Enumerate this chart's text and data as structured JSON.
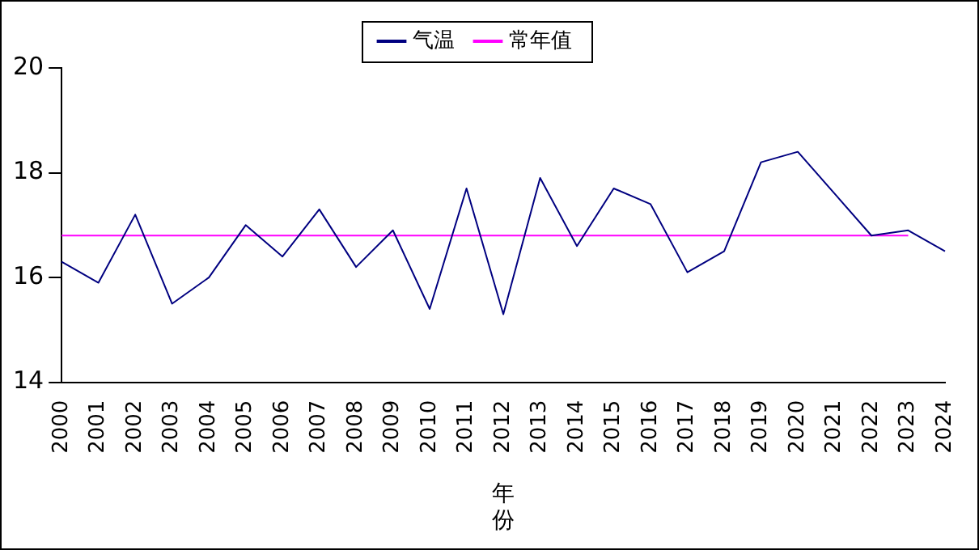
{
  "chart_data": {
    "type": "line",
    "xlabel": "年份",
    "categories": [
      "2000",
      "2001",
      "2002",
      "2003",
      "2004",
      "2005",
      "2006",
      "2007",
      "2008",
      "2009",
      "2010",
      "2011",
      "2012",
      "2013",
      "2014",
      "2015",
      "2016",
      "2017",
      "2018",
      "2019",
      "2020",
      "2021",
      "2022",
      "2023",
      "2024"
    ],
    "series": [
      {
        "name": "气温",
        "color": "#000080",
        "values": [
          16.3,
          15.9,
          17.2,
          15.5,
          16.0,
          17.0,
          16.4,
          17.3,
          16.2,
          16.9,
          15.4,
          17.7,
          15.3,
          17.9,
          16.6,
          17.7,
          17.4,
          16.1,
          16.5,
          18.2,
          18.4,
          17.6,
          16.8,
          16.9,
          16.5
        ]
      },
      {
        "name": "常年值",
        "color": "#ff00ff",
        "values": [
          16.8,
          16.8,
          16.8,
          16.8,
          16.8,
          16.8,
          16.8,
          16.8,
          16.8,
          16.8,
          16.8,
          16.8,
          16.8,
          16.8,
          16.8,
          16.8,
          16.8,
          16.8,
          16.8,
          16.8,
          16.8,
          16.8,
          16.8,
          16.8,
          null
        ]
      }
    ],
    "ylim": [
      14,
      20
    ],
    "yticks": [
      14,
      16,
      18,
      20
    ],
    "grid": false,
    "legend": "top",
    "marker": "none",
    "line_style": "solid"
  }
}
